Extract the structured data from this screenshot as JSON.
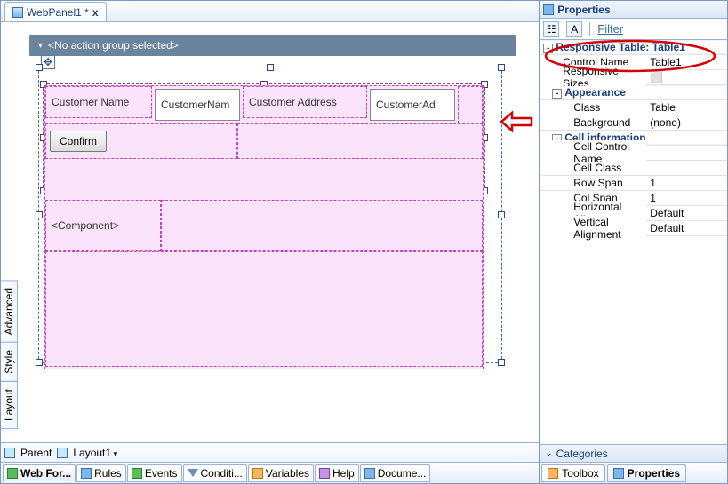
{
  "colors": {
    "brand_blue": "#1a3e7b",
    "sel_dash": "#c040c0",
    "pink_fill": "#fce3fc",
    "annot_red": "#d40000"
  },
  "left": {
    "tab": {
      "title": "WebPanel1 *",
      "close": "x"
    },
    "action_group": "<No action group selected>",
    "outer_table": {
      "row1": {
        "label1": "Customer Name",
        "field1": "CustomerNam",
        "label2": "Customer Address",
        "field2": "CustomerAd"
      },
      "row2": {
        "button": "Confirm"
      },
      "row3": {
        "component": "<Component>"
      }
    },
    "side_tabs": [
      "Advanced",
      "Style",
      "Layout"
    ],
    "breadcrumb": {
      "parent": "Parent",
      "layout": "Layout1"
    },
    "bottom_tabs": [
      "Web For...",
      "Rules",
      "Events",
      "Conditi...",
      "Variables",
      "Help",
      "Docume..."
    ]
  },
  "right": {
    "title": "Properties",
    "filter": "Filter",
    "header": "Responsive Table: Table1",
    "rows": [
      {
        "k": "Control Name",
        "v": "Table1",
        "i": 1
      },
      {
        "k": "Responsive Sizes",
        "v": "⬜",
        "i": 1
      },
      {
        "k": "Appearance",
        "hdr": true
      },
      {
        "k": "Class",
        "v": "Table",
        "i": 2
      },
      {
        "k": "Background",
        "v": "(none)",
        "i": 2
      },
      {
        "k": "Cell information",
        "hdr": true
      },
      {
        "k": "Cell Control Name",
        "v": "",
        "i": 2
      },
      {
        "k": "Cell Class",
        "v": "",
        "i": 2
      },
      {
        "k": "Row Span",
        "v": "1",
        "i": 2
      },
      {
        "k": "Col Span",
        "v": "1",
        "i": 2
      },
      {
        "k": "Horizontal Alignment",
        "v": "Default",
        "i": 2
      },
      {
        "k": "Vertical Alignment",
        "v": "Default",
        "i": 2
      }
    ],
    "categories": "Categories",
    "bottom_tabs": [
      "Toolbox",
      "Properties"
    ]
  }
}
